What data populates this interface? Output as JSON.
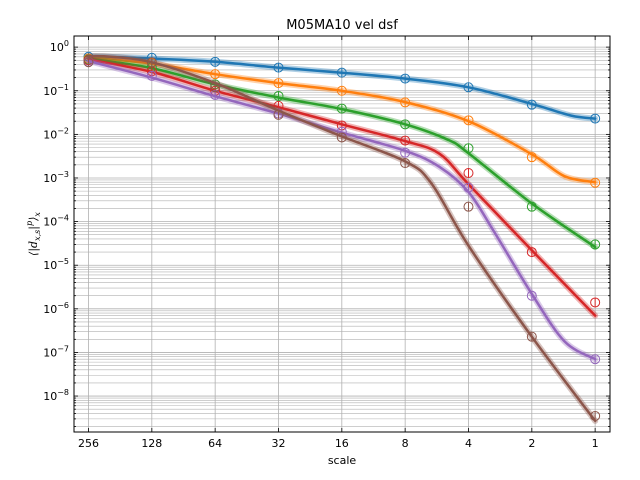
{
  "chart_data": {
    "type": "line",
    "title": "M05MA10 vel dsf",
    "xlabel": "scale",
    "ylabel": "⟨|d_{x,s}|^p⟩_x",
    "x_scale": "log2",
    "y_scale": "log10",
    "x_reversed": true,
    "xlim": [
      300,
      0.85
    ],
    "ylim": [
      1.5e-09,
      1.8
    ],
    "grid": true,
    "x_tick_values": [
      256,
      128,
      64,
      32,
      16,
      8,
      4,
      2,
      1
    ],
    "x_tick_labels": [
      "256",
      "128",
      "64",
      "32",
      "16",
      "8",
      "4",
      "2",
      "1"
    ],
    "y_tick_values": [
      1,
      0.1,
      0.01,
      0.001,
      0.0001,
      1e-05,
      1e-06,
      1e-07,
      1e-08
    ],
    "y_tick_labels": [
      {
        "base": "10",
        "exp": "0"
      },
      {
        "base": "10",
        "exp": "−1"
      },
      {
        "base": "10",
        "exp": "−2"
      },
      {
        "base": "10",
        "exp": "−3"
      },
      {
        "base": "10",
        "exp": "−4"
      },
      {
        "base": "10",
        "exp": "−5"
      },
      {
        "base": "10",
        "exp": "−6"
      },
      {
        "base": "10",
        "exp": "−7"
      },
      {
        "base": "10",
        "exp": "−8"
      }
    ],
    "series": [
      {
        "color": "#1f77b4",
        "curve": [
          [
            256,
            0.62
          ],
          [
            128,
            0.55
          ],
          [
            64,
            0.46
          ],
          [
            32,
            0.34
          ],
          [
            16,
            0.26
          ],
          [
            8,
            0.19
          ],
          [
            4,
            0.12
          ],
          [
            2,
            0.05
          ],
          [
            1.3,
            0.027
          ],
          [
            1,
            0.023
          ]
        ],
        "markers": [
          [
            256,
            0.6
          ],
          [
            128,
            0.57
          ],
          [
            64,
            0.46
          ],
          [
            32,
            0.34
          ],
          [
            16,
            0.26
          ],
          [
            8,
            0.19
          ],
          [
            4,
            0.12
          ],
          [
            2,
            0.048
          ],
          [
            1,
            0.023
          ]
        ]
      },
      {
        "color": "#ff7f0e",
        "curve": [
          [
            256,
            0.58
          ],
          [
            128,
            0.42
          ],
          [
            64,
            0.24
          ],
          [
            32,
            0.15
          ],
          [
            16,
            0.1
          ],
          [
            8,
            0.055
          ],
          [
            4,
            0.02
          ],
          [
            2,
            0.0035
          ],
          [
            1.4,
            0.0011
          ],
          [
            1,
            0.0008
          ]
        ],
        "markers": [
          [
            256,
            0.55
          ],
          [
            128,
            0.43
          ],
          [
            64,
            0.24
          ],
          [
            32,
            0.15
          ],
          [
            16,
            0.1
          ],
          [
            8,
            0.054
          ],
          [
            4,
            0.021
          ],
          [
            2,
            0.003
          ],
          [
            1,
            0.00078
          ]
        ]
      },
      {
        "color": "#2ca02c",
        "curve": [
          [
            256,
            0.55
          ],
          [
            128,
            0.33
          ],
          [
            64,
            0.14
          ],
          [
            32,
            0.07
          ],
          [
            16,
            0.038
          ],
          [
            8,
            0.017
          ],
          [
            5,
            0.0075
          ],
          [
            4,
            0.0037
          ],
          [
            2,
            0.00026
          ],
          [
            1,
            2.6e-05
          ]
        ],
        "markers": [
          [
            256,
            0.52
          ],
          [
            128,
            0.35
          ],
          [
            64,
            0.14
          ],
          [
            32,
            0.076
          ],
          [
            16,
            0.039
          ],
          [
            8,
            0.017
          ],
          [
            4,
            0.0048
          ],
          [
            2,
            0.00022
          ],
          [
            1,
            3e-05
          ]
        ]
      },
      {
        "color": "#d62728",
        "curve": [
          [
            256,
            0.52
          ],
          [
            128,
            0.27
          ],
          [
            64,
            0.1
          ],
          [
            32,
            0.042
          ],
          [
            16,
            0.017
          ],
          [
            8,
            0.007
          ],
          [
            5.5,
            0.0036
          ],
          [
            4,
            0.00072
          ],
          [
            2,
            2.2e-05
          ],
          [
            1,
            7e-07
          ]
        ],
        "markers": [
          [
            256,
            0.5
          ],
          [
            128,
            0.28
          ],
          [
            64,
            0.1
          ],
          [
            32,
            0.045
          ],
          [
            16,
            0.016
          ],
          [
            8,
            0.0072
          ],
          [
            4,
            0.0013
          ],
          [
            2,
            2e-05
          ],
          [
            1,
            1.4e-06
          ]
        ]
      },
      {
        "color": "#9467bd",
        "curve": [
          [
            256,
            0.48
          ],
          [
            128,
            0.2
          ],
          [
            64,
            0.075
          ],
          [
            32,
            0.03
          ],
          [
            16,
            0.011
          ],
          [
            8,
            0.0042
          ],
          [
            5.5,
            0.0018
          ],
          [
            4,
            0.00048
          ],
          [
            3,
            5.5e-05
          ],
          [
            2,
            2.2e-06
          ],
          [
            1.4,
            1.8e-07
          ],
          [
            1,
            7e-08
          ]
        ],
        "markers": [
          [
            256,
            0.46
          ],
          [
            128,
            0.22
          ],
          [
            64,
            0.08
          ],
          [
            32,
            0.03
          ],
          [
            16,
            0.0115
          ],
          [
            8,
            0.0038
          ],
          [
            4,
            0.0006
          ],
          [
            2,
            2e-06
          ],
          [
            1,
            7e-08
          ]
        ]
      },
      {
        "color": "#8c564b",
        "curve": [
          [
            256,
            0.62
          ],
          [
            200,
            0.6
          ],
          [
            128,
            0.45
          ],
          [
            64,
            0.15
          ],
          [
            32,
            0.035
          ],
          [
            16,
            0.009
          ],
          [
            8,
            0.0024
          ],
          [
            6,
            0.00075
          ],
          [
            4,
            2.8e-05
          ],
          [
            2,
            2.3e-07
          ],
          [
            1,
            2.7e-09
          ]
        ],
        "markers": [
          [
            256,
            0.45
          ],
          [
            128,
            0.45
          ],
          [
            64,
            0.12
          ],
          [
            32,
            0.028
          ],
          [
            16,
            0.0085
          ],
          [
            8,
            0.0022
          ],
          [
            4,
            0.00022
          ],
          [
            2,
            2.3e-07
          ],
          [
            1,
            3.5e-09
          ]
        ]
      }
    ]
  }
}
